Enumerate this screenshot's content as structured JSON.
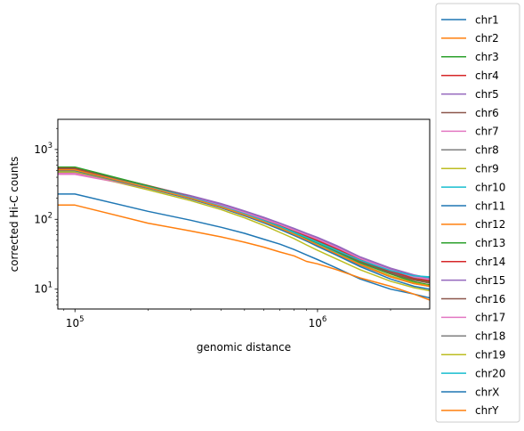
{
  "chart_data": {
    "type": "line",
    "title": "",
    "xlabel": "genomic distance",
    "ylabel": "corrected Hi-C counts",
    "xscale": "log",
    "yscale": "log",
    "xlim": [
      85000,
      2900000
    ],
    "ylim": [
      5.2,
      2700
    ],
    "x_ticks": [
      {
        "value": 100000,
        "base": "10",
        "exp": "5"
      },
      {
        "value": 1000000,
        "base": "10",
        "exp": "6"
      }
    ],
    "y_ticks": [
      {
        "value": 10,
        "base": "10",
        "exp": "1"
      },
      {
        "value": 100,
        "base": "10",
        "exp": "2"
      },
      {
        "value": 1000,
        "base": "10",
        "exp": "3"
      }
    ],
    "legend_position": "right",
    "grid": false,
    "x": [
      85000,
      100000,
      200000,
      300000,
      400000,
      500000,
      600000,
      700000,
      800000,
      900000,
      1000000,
      1200000,
      1500000,
      2000000,
      2500000,
      2900000
    ],
    "series": [
      {
        "name": "chr1",
        "color": "#1f77b4",
        "values": [
          530,
          530,
          300,
          210,
          160,
          125,
          100,
          82,
          68,
          57,
          49,
          37,
          26,
          17.5,
          14,
          13
        ]
      },
      {
        "name": "chr2",
        "color": "#ff7f0e",
        "values": [
          505,
          505,
          290,
          205,
          155,
          121,
          97,
          80,
          66,
          55,
          47,
          36,
          25,
          17,
          13.5,
          12.5
        ]
      },
      {
        "name": "chr3",
        "color": "#2ca02c",
        "values": [
          515,
          515,
          295,
          208,
          157,
          123,
          99,
          81,
          67,
          56,
          48,
          36.5,
          25.5,
          17.2,
          13.8,
          12.8
        ]
      },
      {
        "name": "chr4",
        "color": "#d62728",
        "values": [
          540,
          540,
          305,
          215,
          164,
          129,
          104,
          86,
          72,
          61,
          53,
          40,
          28,
          19,
          15,
          14
        ]
      },
      {
        "name": "chr5",
        "color": "#9467bd",
        "values": [
          520,
          520,
          300,
          218,
          168,
          132,
          107,
          88,
          74,
          63,
          55,
          42,
          29,
          20,
          16,
          14.5
        ]
      },
      {
        "name": "chr6",
        "color": "#8c564b",
        "values": [
          525,
          525,
          300,
          212,
          160,
          126,
          102,
          84,
          70,
          59,
          51,
          38.5,
          27,
          18.5,
          14.8,
          13.5
        ]
      },
      {
        "name": "chr7",
        "color": "#e377c2",
        "values": [
          440,
          440,
          280,
          210,
          162,
          128,
          104,
          86,
          72,
          61,
          53,
          40.5,
          28.5,
          19.5,
          15.5,
          14.2
        ]
      },
      {
        "name": "chr8",
        "color": "#7f7f7f",
        "values": [
          500,
          500,
          290,
          203,
          152,
          118,
          94,
          77,
          63,
          52,
          44,
          33,
          23,
          15.5,
          12.5,
          11.5
        ]
      },
      {
        "name": "chr9",
        "color": "#bcbd22",
        "values": [
          470,
          470,
          265,
          185,
          138,
          105,
          82,
          65,
          53,
          43,
          36,
          27,
          19,
          13,
          10.5,
          9.5
        ]
      },
      {
        "name": "chr10",
        "color": "#17becf",
        "values": [
          495,
          495,
          285,
          200,
          150,
          117,
          93,
          76,
          62,
          52,
          44,
          33.5,
          24,
          17,
          14.5,
          14.8
        ]
      },
      {
        "name": "chr11",
        "color": "#1f77b4",
        "values": [
          230,
          230,
          130,
          97,
          77,
          63,
          52,
          44,
          37,
          31,
          26.5,
          20,
          14,
          10,
          8.5,
          7.5
        ]
      },
      {
        "name": "chr12",
        "color": "#ff7f0e",
        "values": [
          160,
          160,
          88,
          68,
          56,
          47,
          40,
          34,
          30,
          25,
          23,
          19,
          14.5,
          11,
          8.5,
          7
        ]
      },
      {
        "name": "chr13",
        "color": "#2ca02c",
        "values": [
          560,
          560,
          302,
          208,
          156,
          121,
          97,
          79,
          65,
          54,
          46,
          34.5,
          24,
          16.5,
          12.8,
          11.5
        ]
      },
      {
        "name": "chr14",
        "color": "#d62728",
        "values": [
          510,
          510,
          292,
          207,
          158,
          124,
          100,
          83,
          69,
          58,
          50,
          38,
          26.5,
          18,
          14.2,
          13
        ]
      },
      {
        "name": "chr15",
        "color": "#9467bd",
        "values": [
          500,
          500,
          288,
          210,
          163,
          129,
          105,
          87,
          73,
          62,
          54,
          41,
          28.5,
          19.5,
          15.5,
          14
        ]
      },
      {
        "name": "chr16",
        "color": "#8c564b",
        "values": [
          490,
          490,
          283,
          202,
          154,
          120,
          96,
          79,
          65,
          55,
          47,
          35.5,
          25,
          17,
          13.5,
          12.2
        ]
      },
      {
        "name": "chr17",
        "color": "#e377c2",
        "values": [
          455,
          455,
          278,
          205,
          158,
          125,
          101,
          84,
          70,
          60,
          52,
          39.5,
          27.5,
          18.8,
          15,
          13.8
        ]
      },
      {
        "name": "chr18",
        "color": "#7f7f7f",
        "values": [
          480,
          480,
          278,
          195,
          146,
          112,
          89,
          72,
          59,
          49,
          42,
          31.5,
          22,
          15,
          12,
          11
        ]
      },
      {
        "name": "chr19",
        "color": "#bcbd22",
        "values": [
          485,
          485,
          280,
          197,
          148,
          114,
          90,
          73,
          60,
          50,
          43,
          32,
          22.5,
          15.5,
          12.3,
          11.2
        ]
      },
      {
        "name": "chr20",
        "color": "#17becf",
        "values": [
          505,
          505,
          290,
          204,
          154,
          120,
          96,
          79,
          65,
          55,
          47,
          36,
          26,
          18.5,
          15.5,
          15
        ]
      },
      {
        "name": "chrX",
        "color": "#1f77b4",
        "values": [
          500,
          500,
          280,
          196,
          147,
          113,
          89,
          72,
          59,
          49,
          41,
          30.5,
          21,
          14,
          11,
          10
        ]
      },
      {
        "name": "chrY",
        "color": "#ff7f0e",
        "values": [
          510,
          510,
          285,
          200,
          150,
          116,
          92,
          75,
          61,
          51,
          43,
          32,
          22.5,
          15,
          12,
          11
        ]
      }
    ]
  }
}
